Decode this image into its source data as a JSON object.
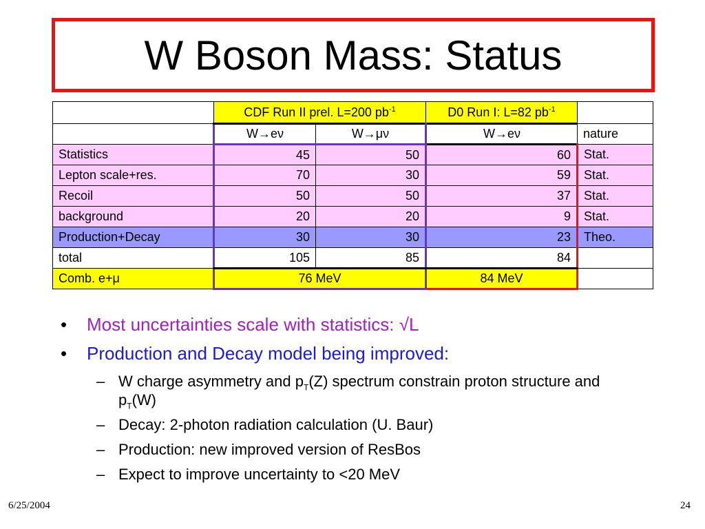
{
  "title": "W Boson Mass: Status",
  "table": {
    "header_cdf_prefix": "CDF Run II prel. L=200 pb",
    "header_cdf_exp": "-1",
    "header_d0_prefix": "D0 Run I: L=82 pb",
    "header_d0_exp": "-1",
    "sub_cdf_e": "W→eν",
    "sub_cdf_mu": "W→μν",
    "sub_d0_e": "W→eν",
    "sub_nature": "nature",
    "rows": [
      {
        "label": "Statistics",
        "cdf_e": "45",
        "cdf_mu": "50",
        "d0": "60",
        "nature": "Stat."
      },
      {
        "label": "Lepton scale+res.",
        "cdf_e": "70",
        "cdf_mu": "30",
        "d0": "59",
        "nature": "Stat."
      },
      {
        "label": "Recoil",
        "cdf_e": "50",
        "cdf_mu": "50",
        "d0": "37",
        "nature": "Stat."
      },
      {
        "label": "background",
        "cdf_e": "20",
        "cdf_mu": "20",
        "d0": "9",
        "nature": "Stat."
      },
      {
        "label": "Production+Decay",
        "cdf_e": "30",
        "cdf_mu": "30",
        "d0": "23",
        "nature": "Theo."
      },
      {
        "label": "total",
        "cdf_e": "105",
        "cdf_mu": "85",
        "d0": "84",
        "nature": ""
      }
    ],
    "comb_label": "Comb. e+μ",
    "comb_cdf": "76 MeV",
    "comb_d0": "84 MeV"
  },
  "bullets": {
    "b1": "Most uncertainties scale with statistics: √L",
    "b2": "Production and Decay model being improved:",
    "s1_a": "W charge asymmetry and p",
    "s1_sub1": "T",
    "s1_b": "(Z) spectrum constrain proton structure and p",
    "s1_sub2": "T",
    "s1_c": "(W)",
    "s2": "Decay: 2-photon radiation calculation (U. Baur)",
    "s3": "Production: new improved version of ResBos",
    "s4": "Expect to improve uncertainty to <20 MeV"
  },
  "footer": {
    "date": "6/25/2004",
    "page": "24"
  },
  "colors": {
    "title_border": "#ee1111",
    "header_yellow": "#ffff00",
    "row_pink": "#ffccff",
    "row_blue": "#9999ff",
    "cdf_box": "#6633cc",
    "d0_box": "#ee1111",
    "bullet1": "#a020c0",
    "bullet2": "#1a1adf"
  }
}
